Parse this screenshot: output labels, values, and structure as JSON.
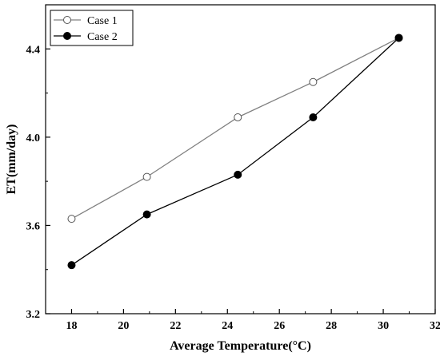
{
  "chart_data": {
    "type": "line",
    "xlabel": "Average Temperature(°C)",
    "ylabel": "ET(mm/day)",
    "xlim": [
      17,
      32
    ],
    "ylim": [
      3.2,
      4.6
    ],
    "xticks": [
      18,
      20,
      22,
      24,
      26,
      28,
      30,
      32
    ],
    "yticks": [
      3.2,
      3.6,
      4.0,
      4.4
    ],
    "ytick_labels": [
      "3.2",
      "3.6",
      "4.0",
      "4.4"
    ],
    "grid": false,
    "legend": "top-left",
    "series": [
      {
        "name": "Case 1",
        "marker": "open-circle",
        "line_color": "#808080",
        "x": [
          18.0,
          20.9,
          24.4,
          27.3,
          30.6
        ],
        "y": [
          3.63,
          3.82,
          4.09,
          4.25,
          4.45
        ]
      },
      {
        "name": "Case 2",
        "marker": "filled-circle",
        "line_color": "#000000",
        "x": [
          18.0,
          20.9,
          24.4,
          27.3,
          30.6
        ],
        "y": [
          3.42,
          3.65,
          3.83,
          4.09,
          4.45
        ]
      }
    ]
  }
}
